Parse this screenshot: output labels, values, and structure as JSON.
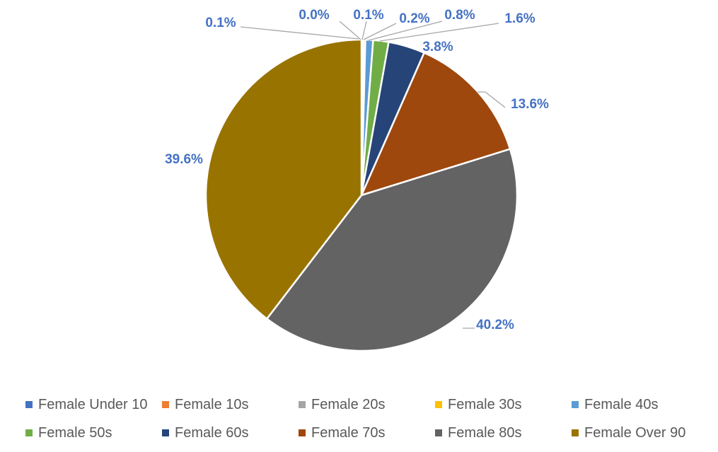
{
  "chart_data": {
    "type": "pie",
    "categories": [
      "Female Under 10",
      "Female 10s",
      "Female 20s",
      "Female 30s",
      "Female 40s",
      "Female 50s",
      "Female 60s",
      "Female 70s",
      "Female 80s",
      "Female Over 90"
    ],
    "values": [
      0.1,
      0.0,
      0.1,
      0.2,
      0.8,
      1.6,
      3.8,
      13.6,
      40.2,
      39.6
    ],
    "labels": [
      "0.1%",
      "0.0%",
      "0.1%",
      "0.2%",
      "0.8%",
      "1.6%",
      "3.8%",
      "13.6%",
      "40.2%",
      "39.6%"
    ],
    "colors": [
      "#4472C4",
      "#ED7D31",
      "#A5A5A5",
      "#FFC000",
      "#5B9BD5",
      "#70AD47",
      "#264478",
      "#9E480E",
      "#636363",
      "#997300"
    ],
    "label_color": "#4472C4",
    "leader_line_color": "#A6A6A6",
    "start_angle": "12 o'clock, clockwise",
    "legend_position": "bottom",
    "title": ""
  }
}
